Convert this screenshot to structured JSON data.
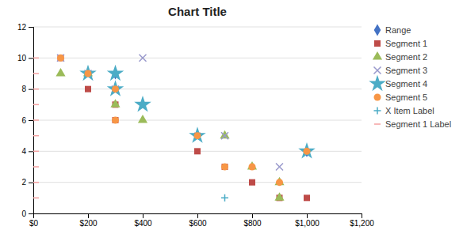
{
  "chart_data": {
    "type": "scatter",
    "title": "Chart Title",
    "xlim": [
      0,
      1200
    ],
    "ylim": [
      0,
      12
    ],
    "xticks": [
      {
        "value": 0,
        "label": "$0"
      },
      {
        "value": 200,
        "label": "$200"
      },
      {
        "value": 400,
        "label": "$400"
      },
      {
        "value": 600,
        "label": "$600"
      },
      {
        "value": 800,
        "label": "$800"
      },
      {
        "value": 1000,
        "label": "$1,000"
      },
      {
        "value": 1200,
        "label": "$1,200"
      }
    ],
    "yticks": [
      0,
      2,
      4,
      6,
      8,
      10,
      12
    ],
    "grid": true,
    "legend": "right",
    "series": [
      {
        "name": "Range",
        "color": "#4472C4",
        "marker": "diamond",
        "x": [
          300,
          1000
        ],
        "values": [
          9,
          4
        ]
      },
      {
        "name": "Segment 1",
        "color": "#BE4B48",
        "marker": "square",
        "x": [
          100,
          200,
          300,
          300,
          600,
          600,
          700,
          800,
          900,
          1000
        ],
        "values": [
          10,
          8,
          7,
          6,
          5,
          4,
          3,
          2,
          1,
          1
        ]
      },
      {
        "name": "Segment 2",
        "color": "#9BBB59",
        "marker": "triangle",
        "x": [
          100,
          200,
          300,
          400,
          700,
          800,
          900,
          900
        ],
        "values": [
          9,
          9,
          7,
          6,
          5,
          3,
          2,
          1
        ]
      },
      {
        "name": "Segment 3",
        "color": "#9999CC",
        "marker": "x",
        "x": [
          100,
          200,
          300,
          400,
          700,
          900
        ],
        "values": [
          10,
          9,
          8,
          10,
          5,
          3
        ]
      },
      {
        "name": "Segment 4",
        "color": "#4BACC6",
        "marker": "star",
        "x": [
          200,
          300,
          300,
          400,
          600,
          1000
        ],
        "values": [
          9,
          9,
          8,
          7,
          5,
          4
        ]
      },
      {
        "name": "Segment 5",
        "color": "#F79646",
        "marker": "circle",
        "x": [
          100,
          200,
          300,
          300,
          600,
          700,
          800,
          900,
          1000
        ],
        "values": [
          10,
          9,
          8,
          6,
          5,
          3,
          3,
          2,
          4
        ]
      },
      {
        "name": "X Item Label",
        "color": "#4BACC6",
        "marker": "plus",
        "x": [
          700
        ],
        "values": [
          1
        ]
      },
      {
        "name": "Segment 1 Label",
        "color": "#F4A0A0",
        "marker": "dash",
        "values": [
          1,
          2,
          3,
          4,
          5,
          6,
          7,
          8,
          9,
          10
        ]
      }
    ]
  }
}
